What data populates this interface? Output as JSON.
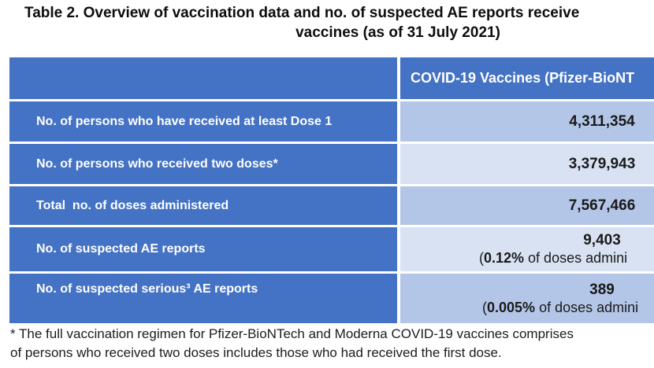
{
  "title": {
    "line1": "Table 2. Overview of vaccination data and no. of suspected AE reports receive",
    "line2": "vaccines (as of 31 July 2021)"
  },
  "table": {
    "header": {
      "col1": "",
      "col2": "COVID-19 Vaccines (Pfizer-BioNT"
    },
    "rows": [
      {
        "label": "No. of persons who have received at least Dose 1",
        "value": "4,311,354"
      },
      {
        "label": "No. of persons who received two doses*",
        "value": "3,379,943"
      },
      {
        "label": "Total  no. of doses administered",
        "value": "7,567,466"
      },
      {
        "label": "No. of suspected AE reports",
        "value": "9,403",
        "detail": {
          "open": "(",
          "pct": "0.12%",
          "rest": " of doses admini"
        }
      },
      {
        "label": "No. of suspected serious³ AE reports",
        "value": "389",
        "detail": {
          "open": "(",
          "pct": "0.005%",
          "rest": " of doses admini"
        }
      }
    ]
  },
  "footnote": {
    "line1": "* The full vaccination regimen for Pfizer-BioNTech and Moderna COVID-19 vaccines comprises",
    "line2": "of persons who received two doses includes those who had received the first dose."
  },
  "colors": {
    "header_blue": "#4472C4",
    "band_medium": "#B4C6E7",
    "band_light": "#D9E2F3",
    "label_text": "#FFFFFF",
    "value_text": "#1A1A1A"
  }
}
